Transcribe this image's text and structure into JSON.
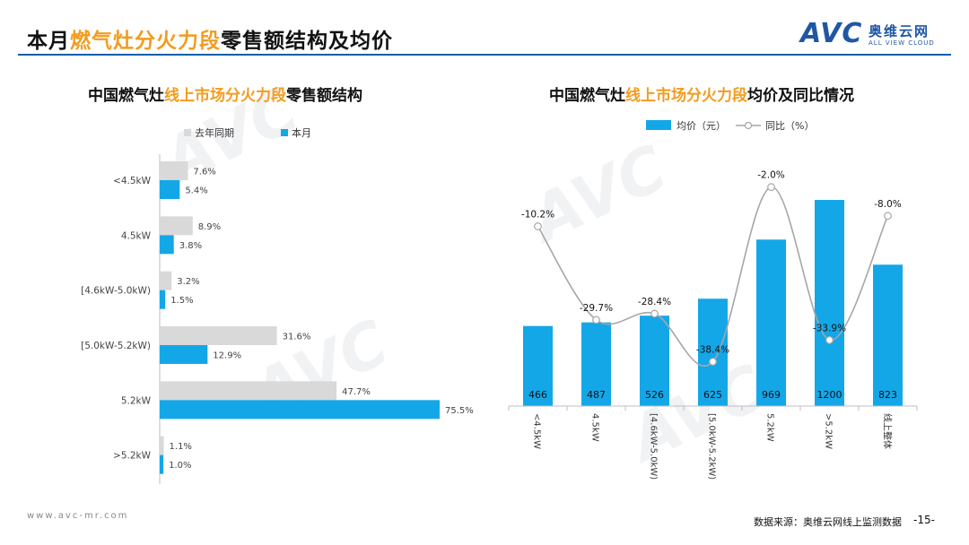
{
  "header": {
    "title_prefix": "本月",
    "title_highlight": "燃气灶分火力段",
    "title_suffix": "零售额结构及均价",
    "logo_text": "AVC",
    "logo_cn": "奥维云网",
    "logo_en": "ALL VIEW CLOUD",
    "accent_color": "#F29C1F",
    "rule_color": "#0B5FA8"
  },
  "left_chart": {
    "title_prefix": "中国燃气灶",
    "title_highlight": "线上市场分火力段",
    "title_suffix": "零售额结构"
  },
  "right_chart": {
    "title_prefix": "中国燃气灶",
    "title_highlight": "线上市场分火力段",
    "title_suffix": "均价及同比情况"
  },
  "chart_data": [
    {
      "type": "bar",
      "orientation": "horizontal",
      "categories": [
        "<4.5kW",
        "4.5kW",
        "[4.6kW-5.0kW)",
        "[5.0kW-5.2kW)",
        "5.2kW",
        ">5.2kW"
      ],
      "series": [
        {
          "name": "去年同期",
          "values": [
            7.6,
            8.9,
            3.2,
            31.6,
            47.7,
            1.1
          ],
          "labels": [
            "7.6%",
            "8.9%",
            "3.2%",
            "31.6%",
            "47.7%",
            "1.1%"
          ],
          "color": "#D9D9D9"
        },
        {
          "name": "本月",
          "values": [
            5.4,
            3.8,
            1.5,
            12.9,
            75.5,
            1.0
          ],
          "labels": [
            "5.4%",
            "3.8%",
            "1.5%",
            "12.9%",
            "75.5%",
            "1.0%"
          ],
          "color": "#14A7E8"
        }
      ],
      "xlim": [
        0,
        80
      ],
      "legend": "top-left"
    },
    {
      "type": "bar+line",
      "categories": [
        "<4.5kW",
        "4.5kW",
        "[4.6kW-5.0kW)",
        "[5.0kW-5.2kW)",
        "5.2kW",
        ">5.2kW",
        "线上整体"
      ],
      "bar_series": {
        "name": "均价（元）",
        "values": [
          466,
          487,
          526,
          625,
          969,
          1200,
          823
        ],
        "labels": [
          "466",
          "487",
          "526",
          "625",
          "969",
          "1200",
          "823"
        ],
        "color": "#14A7E8"
      },
      "line_series": {
        "name": "同比（%）",
        "values": [
          -10.2,
          -29.7,
          -28.4,
          -38.4,
          -2.0,
          -33.9,
          -8.0
        ],
        "labels": [
          "-10.2%",
          "-29.7%",
          "-28.4%",
          "-38.4%",
          "-2.0%",
          "-33.9%",
          "-8.0%"
        ],
        "color": "#A6A6A6"
      },
      "legend": "top-left"
    }
  ],
  "footer": {
    "url": "www.avc-mr.com",
    "source": "数据来源：奥维云网线上监测数据",
    "page": "-15-"
  }
}
